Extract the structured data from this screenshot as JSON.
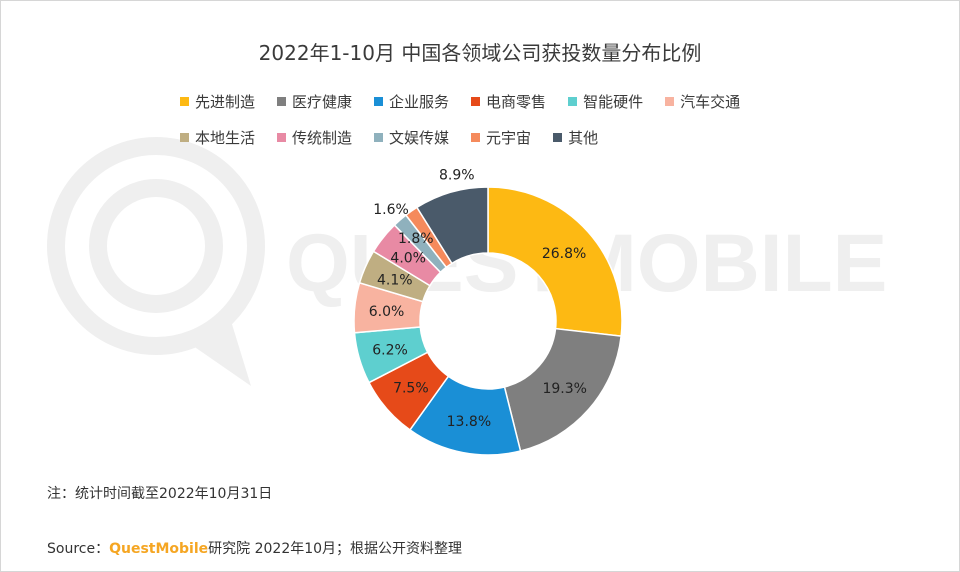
{
  "watermark_text": "QUESTMOBILE",
  "chart_data": {
    "type": "pie",
    "title": "2022年1-10月 中国各领域公司获投数量分布比例",
    "unit": "%",
    "categories": [
      "先进制造",
      "医疗健康",
      "企业服务",
      "电商零售",
      "智能硬件",
      "汽车交通",
      "本地生活",
      "传统制造",
      "文娱传媒",
      "元宇宙",
      "其他"
    ],
    "values": [
      26.8,
      19.3,
      13.8,
      7.5,
      6.2,
      6.0,
      4.1,
      4.0,
      1.8,
      1.6,
      8.9
    ],
    "labels": [
      "26.8%",
      "19.3%",
      "13.8%",
      "7.5%",
      "6.2%",
      "6.0%",
      "4.1%",
      "4.0%",
      "1.8%",
      "1.6%",
      "8.9%"
    ],
    "colors": [
      "#fdb913",
      "#7f7f7f",
      "#1a8fd6",
      "#e64a19",
      "#5ecfcf",
      "#f8b3a0",
      "#bfae82",
      "#e88aa4",
      "#8fb1bd",
      "#f58a5c",
      "#4a5a6a"
    ],
    "legend_placement": "top"
  },
  "footer": {
    "note": "注：统计时间截至2022年10月31日",
    "source_prefix": "Source：",
    "source_brand": "QuestMobile",
    "source_rest": "研究院 2022年10月；根据公开资料整理"
  }
}
